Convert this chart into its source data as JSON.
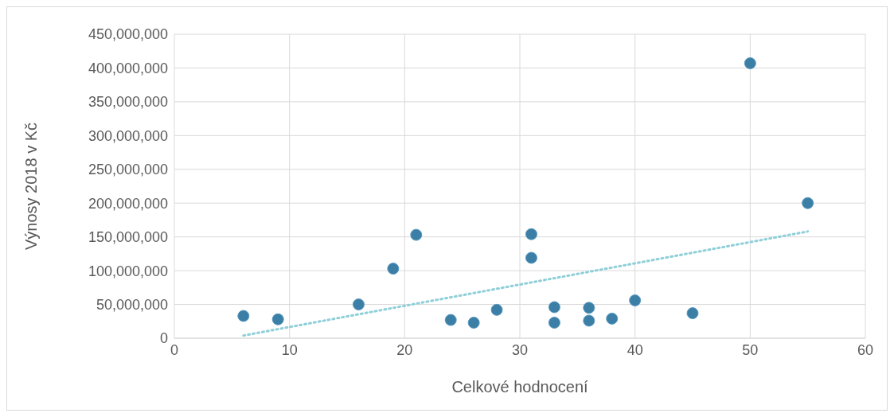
{
  "chart_data": {
    "type": "scatter",
    "xlabel": "Celkové hodnocení",
    "ylabel": "Výnosy 2018 v Kč",
    "xlim": [
      0,
      60
    ],
    "xticks": [
      0,
      10,
      20,
      30,
      40,
      50,
      60
    ],
    "ylim": [
      0,
      450000000
    ],
    "yticks": [
      0,
      {
        "value": 50000000,
        "label": "50,000,000"
      },
      {
        "value": 100000000,
        "label": "100,000,000"
      },
      {
        "value": 150000000,
        "label": "150,000,000"
      },
      {
        "value": 200000000,
        "label": "200,000,000"
      },
      {
        "value": 250000000,
        "label": "250,000,000"
      },
      {
        "value": 300000000,
        "label": "300,000,000"
      },
      {
        "value": 350000000,
        "label": "350,000,000"
      },
      {
        "value": 400000000,
        "label": "400,000,000"
      },
      {
        "value": 450000000,
        "label": "450,000,000"
      }
    ],
    "grid": true,
    "series": [
      {
        "color": "#3b7ea6",
        "marker": "circle",
        "x": [
          6,
          9,
          16,
          19,
          21,
          24,
          26,
          28,
          31,
          31,
          33,
          33,
          36,
          36,
          38,
          40,
          45,
          50,
          55
        ],
        "values": [
          33000000,
          28000000,
          50000000,
          103000000,
          153000000,
          27000000,
          23000000,
          42000000,
          154000000,
          119000000,
          46000000,
          23000000,
          45000000,
          26000000,
          29000000,
          56000000,
          37000000,
          407000000,
          200000000
        ]
      },
      {
        "type": "line",
        "color": "#8ecfd8",
        "marker": "none",
        "line_style": "dotted",
        "x": [
          6,
          55
        ],
        "values": [
          4000000,
          158000000
        ]
      }
    ]
  }
}
